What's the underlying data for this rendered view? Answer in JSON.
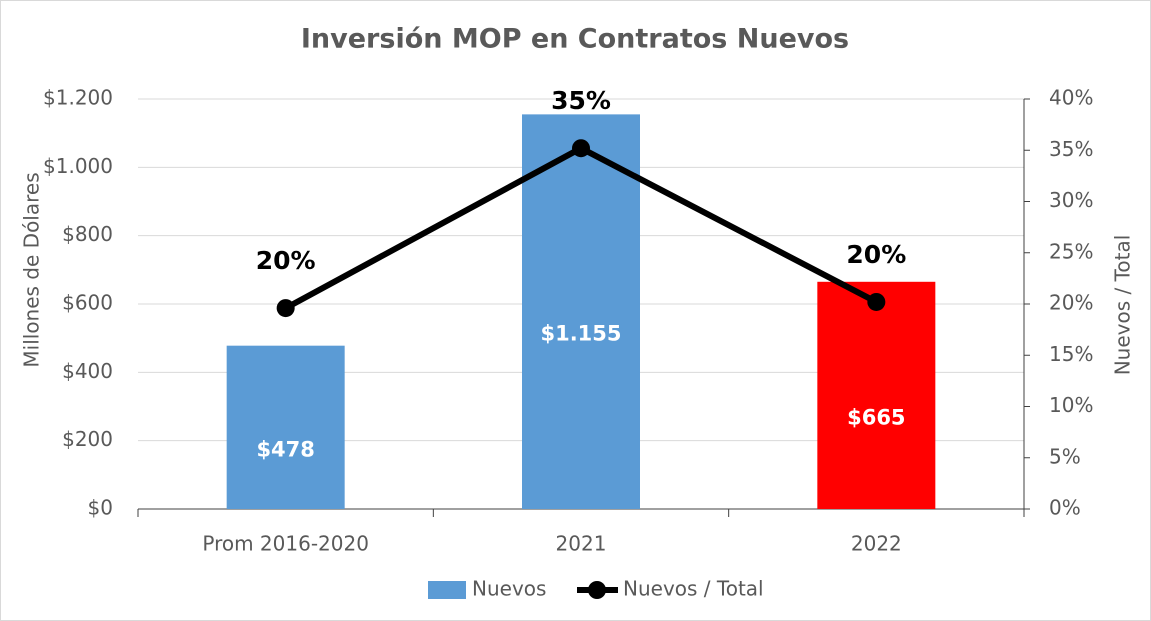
{
  "chart_data": {
    "type": "bar-line",
    "title": "Inversión MOP en Contratos Nuevos",
    "y_label": "Millones de Dólares",
    "y2_label": "Nuevos / Total",
    "categories": [
      "Prom 2016-2020",
      "2021",
      "2022"
    ],
    "series": [
      {
        "name": "Nuevos",
        "type": "bar",
        "color": "#5b9bd5",
        "colors": [
          "#5b9bd5",
          "#5b9bd5",
          "#ff0000"
        ],
        "values": [
          478,
          1155,
          665
        ],
        "value_labels": [
          "$478",
          "$1.155",
          "$665"
        ]
      },
      {
        "name": "Nuevos / Total",
        "type": "line",
        "axis": "y2",
        "color": "#000000",
        "values": [
          19.6,
          35.2,
          20.2
        ],
        "value_labels": [
          "20%",
          "35%",
          "20%"
        ]
      }
    ],
    "ylim": [
      0,
      1200
    ],
    "yticks": [
      {
        "value": 0,
        "label": "$0"
      },
      {
        "value": 200,
        "label": "$200"
      },
      {
        "value": 400,
        "label": "$400"
      },
      {
        "value": 600,
        "label": "$600"
      },
      {
        "value": 800,
        "label": "$800"
      },
      {
        "value": 1000,
        "label": "$1.000"
      },
      {
        "value": 1200,
        "label": "$1.200"
      }
    ],
    "y2lim": [
      0,
      40
    ],
    "y2ticks": [
      {
        "value": 0,
        "label": "0%"
      },
      {
        "value": 5,
        "label": "5%"
      },
      {
        "value": 10,
        "label": "10%"
      },
      {
        "value": 15,
        "label": "15%"
      },
      {
        "value": 20,
        "label": "20%"
      },
      {
        "value": 25,
        "label": "25%"
      },
      {
        "value": 30,
        "label": "30%"
      },
      {
        "value": 35,
        "label": "35%"
      },
      {
        "value": 40,
        "label": "40%"
      }
    ],
    "grid": true
  }
}
